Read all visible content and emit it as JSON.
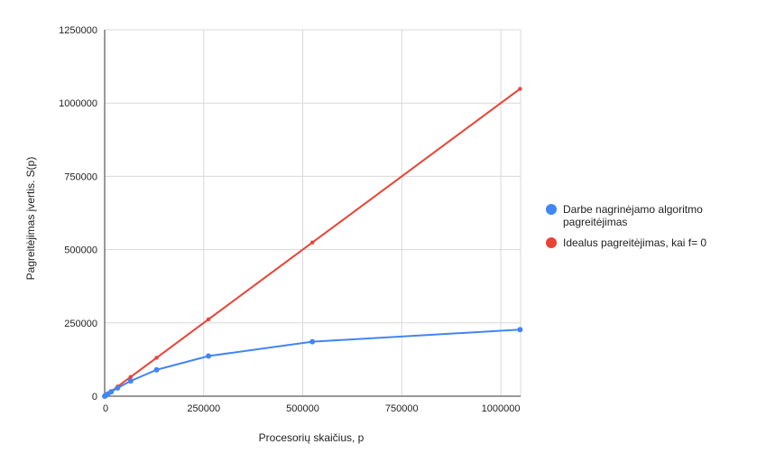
{
  "chart_data": {
    "type": "line",
    "xlabel": "Procesorių skaičius, p",
    "ylabel": "Pagreitėjimas įvertis. S(p)",
    "xlim": [
      0,
      1050000
    ],
    "ylim": [
      0,
      1250000
    ],
    "x_ticks": [
      0,
      250000,
      500000,
      750000,
      1000000
    ],
    "y_ticks": [
      0,
      250000,
      500000,
      750000,
      1000000,
      1250000
    ],
    "x_tick_labels": [
      "0",
      "250000",
      "500000",
      "750000",
      "1000000"
    ],
    "y_tick_labels": [
      "0",
      "250000",
      "500000",
      "750000",
      "1000000",
      "1250000"
    ],
    "grid": true,
    "legend_position": "right",
    "series": [
      {
        "name_lines": [
          "Darbe nagrinėjamo algoritmo",
          "pagreitėjimas"
        ],
        "color": "#4285F4",
        "points": [
          [
            1,
            1
          ],
          [
            2048,
            2000
          ],
          [
            4096,
            4000
          ],
          [
            8192,
            7800
          ],
          [
            16384,
            15000
          ],
          [
            32768,
            28000
          ],
          [
            65536,
            52000
          ],
          [
            131072,
            90000
          ],
          [
            262144,
            137000
          ],
          [
            524288,
            186000
          ],
          [
            1048576,
            227000
          ]
        ]
      },
      {
        "name_lines": [
          "Idealus pagreitėjimas, kai f= 0"
        ],
        "color": "#EA4335",
        "points": [
          [
            1,
            1
          ],
          [
            2048,
            2048
          ],
          [
            4096,
            4096
          ],
          [
            8192,
            8192
          ],
          [
            16384,
            16384
          ],
          [
            32768,
            32768
          ],
          [
            65536,
            65536
          ],
          [
            131072,
            131072
          ],
          [
            262144,
            262144
          ],
          [
            524288,
            524288
          ],
          [
            1048576,
            1048576
          ]
        ]
      }
    ]
  }
}
